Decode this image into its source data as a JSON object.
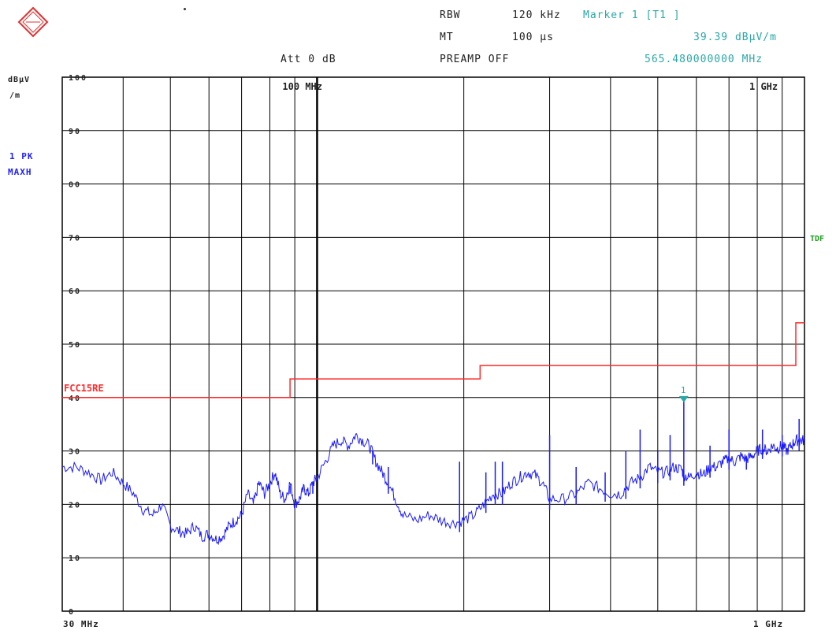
{
  "header": {
    "rbw_label": "RBW",
    "rbw_value": "120 kHz",
    "mt_label": "MT",
    "mt_value": "100 µs",
    "att": "Att 0 dB",
    "preamp": "PREAMP OFF",
    "marker_title": "Marker 1 [T1 ]",
    "marker_level": "39.39 dBµV/m",
    "marker_freq": "565.480000000 MHz"
  },
  "side": {
    "unit_line1": "dBµV",
    "unit_line2": "/m",
    "trace_line1": "1 PK",
    "trace_line2": "MAXH",
    "tdf": "TDF"
  },
  "colors": {
    "trace": "#1a1aff",
    "limit": "#ff2a2a",
    "marker": "#2aa7a7",
    "grid": "#000000"
  },
  "chart_data": {
    "type": "line",
    "x_scale": "log",
    "xlim_mhz": [
      30,
      1000
    ],
    "ylim": [
      0,
      100
    ],
    "ylabel": "dBµV/m",
    "y_ticks": [
      "0",
      "10",
      "20",
      "30",
      "40",
      "50",
      "60",
      "70",
      "80",
      "90",
      "100"
    ],
    "x_tick_labels": {
      "start": "30 MHz",
      "end": "1 GHz",
      "top_100": "100 MHz",
      "top_1000": "1 GHz"
    },
    "limit_line": {
      "name": "FCC15RE",
      "points": [
        [
          30,
          40
        ],
        [
          88,
          40
        ],
        [
          88,
          43.5
        ],
        [
          216,
          43.5
        ],
        [
          216,
          46
        ],
        [
          960,
          46
        ],
        [
          960,
          54
        ],
        [
          1000,
          54
        ]
      ]
    },
    "marker": {
      "label": "1",
      "freq_mhz": 565.48,
      "level": 39.39
    },
    "series": [
      {
        "values_mhz": [
          30,
          32,
          34,
          36,
          38,
          40,
          42,
          44,
          46,
          48,
          50,
          52,
          54,
          56,
          58,
          60,
          62,
          64,
          66,
          68,
          70,
          72,
          74,
          76,
          78,
          80,
          82,
          84,
          86,
          88,
          90,
          92,
          94,
          96,
          98,
          100,
          104,
          108,
          112,
          116,
          120,
          124,
          128,
          132,
          136,
          140,
          145,
          150,
          160,
          170,
          180,
          190,
          200,
          210,
          220,
          230,
          240,
          250,
          260,
          270,
          280,
          290,
          300,
          320,
          340,
          360,
          380,
          400,
          420,
          440,
          460,
          480,
          500,
          520,
          540,
          560,
          565.48,
          580,
          600,
          620,
          640,
          660,
          680,
          700,
          720,
          740,
          760,
          780,
          800,
          820,
          840,
          860,
          880,
          900,
          920,
          940,
          960,
          980,
          1000
        ],
        "values_db": [
          27,
          27,
          26,
          24.5,
          26,
          24,
          22,
          19,
          18,
          20,
          16,
          15,
          14.5,
          16,
          14,
          14.5,
          13.5,
          14,
          16,
          17,
          18,
          22,
          20,
          24,
          22,
          24,
          26,
          22,
          21,
          24,
          20,
          21,
          23,
          22,
          24,
          25,
          28,
          31,
          32,
          31,
          33,
          32,
          31,
          28,
          26,
          24,
          21,
          18,
          17,
          18,
          17,
          16.5,
          17,
          18,
          20,
          22,
          22,
          24,
          25,
          26,
          25.5,
          24,
          21,
          21,
          22,
          24,
          23,
          22,
          22,
          24,
          25,
          27,
          26,
          26,
          27,
          26.5,
          25.5,
          25,
          26,
          25.5,
          27,
          27,
          28,
          28.5,
          28,
          29,
          28.5,
          29,
          30,
          30.5,
          30,
          31,
          30.5,
          31,
          30,
          31,
          32,
          32,
          32
        ]
      }
    ],
    "spikes": [
      [
        76,
        22
      ],
      [
        88,
        23.5
      ],
      [
        98,
        24
      ],
      [
        130,
        30
      ],
      [
        140,
        27
      ],
      [
        196,
        28
      ],
      [
        222,
        26
      ],
      [
        232,
        28
      ],
      [
        240,
        28
      ],
      [
        300,
        33
      ],
      [
        340,
        27
      ],
      [
        390,
        26
      ],
      [
        430,
        30
      ],
      [
        460,
        34
      ],
      [
        500,
        30
      ],
      [
        530,
        33
      ],
      [
        565.48,
        39.39
      ],
      [
        640,
        31
      ],
      [
        700,
        34
      ],
      [
        760,
        29
      ],
      [
        820,
        34
      ],
      [
        900,
        33
      ],
      [
        975,
        36
      ]
    ]
  }
}
